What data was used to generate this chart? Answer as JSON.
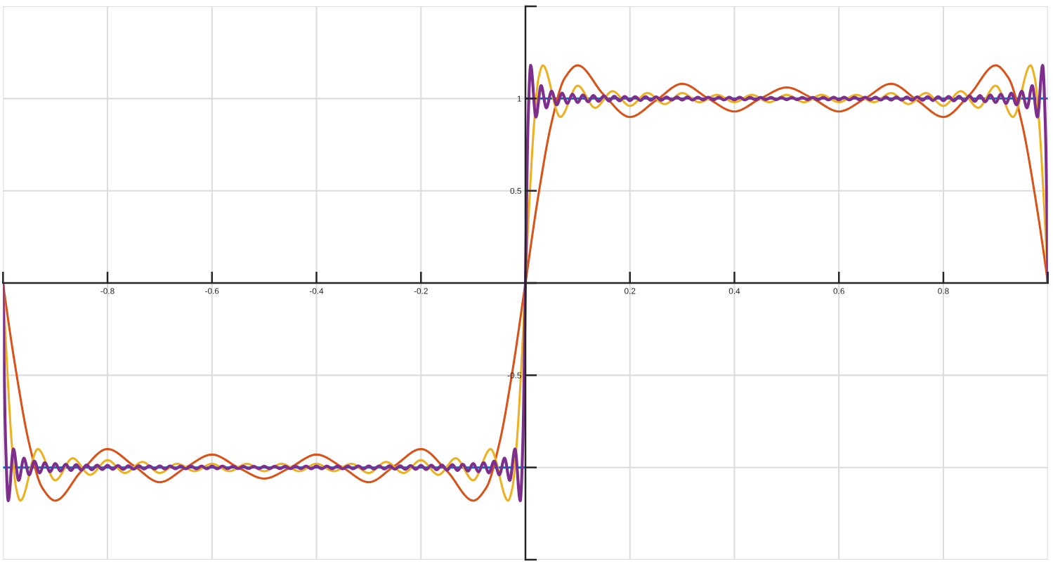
{
  "chart_data": {
    "type": "line",
    "xlim": [
      -1,
      1
    ],
    "ylim": [
      -1.5,
      1.5
    ],
    "xticks": [
      {
        "value": -1,
        "label": null
      },
      -0.8,
      -0.6,
      -0.4,
      -0.2,
      {
        "value": 0,
        "label": null
      },
      0.2,
      0.4,
      0.6,
      0.8,
      {
        "value": 1,
        "label": null
      }
    ],
    "yticks": [
      {
        "value": -1.5,
        "label": null
      },
      {
        "value": -1,
        "label": null
      },
      -0.5,
      {
        "value": 0,
        "label": null
      },
      0.5,
      1,
      {
        "value": 1.5,
        "label": null
      }
    ],
    "grid": true,
    "line_style": "solid",
    "series": [
      {
        "color": "#0072bd",
        "x": [
          -1,
          0
        ],
        "values": [
          -1,
          -1
        ]
      },
      {
        "color": "#0072bd",
        "x": [
          0,
          1
        ],
        "values": [
          1,
          1
        ]
      },
      {
        "color": "#d95319",
        "x": [
          -1,
          -0.975,
          -0.95,
          -0.925,
          -0.9,
          -0.85,
          -0.8,
          -0.75,
          -0.7,
          -0.65,
          -0.6,
          -0.55,
          -0.5,
          -0.45,
          -0.4,
          -0.35,
          -0.3,
          -0.25,
          -0.2,
          -0.15,
          -0.1,
          -0.075,
          -0.05,
          -0.025,
          0,
          0.025,
          0.05,
          0.075,
          0.1,
          0.15,
          0.2,
          0.25,
          0.3,
          0.35,
          0.4,
          0.45,
          0.5,
          0.55,
          0.6,
          0.65,
          0.7,
          0.75,
          0.8,
          0.85,
          0.9,
          0.925,
          0.95,
          0.975,
          1
        ],
        "values": [
          0,
          -0.48,
          -0.87,
          -1.11,
          -1.18,
          -1.02,
          -0.9,
          -0.99,
          -1.08,
          -1.0,
          -0.93,
          -1.0,
          -1.06,
          -1.0,
          -0.93,
          -1.0,
          -1.08,
          -0.99,
          -0.9,
          -1.02,
          -1.18,
          -1.11,
          -0.87,
          -0.48,
          0,
          0.48,
          0.87,
          1.11,
          1.18,
          1.02,
          0.9,
          0.99,
          1.08,
          1.0,
          0.93,
          1.0,
          1.06,
          1.0,
          0.93,
          1.0,
          1.08,
          0.99,
          0.9,
          1.02,
          1.18,
          1.11,
          0.87,
          0.48,
          0
        ]
      },
      {
        "color": "#edb120",
        "x": [
          -1,
          -0.9917,
          -0.9833,
          -0.975,
          -0.9667,
          -0.9333,
          -0.9,
          -0.8667,
          -0.8333,
          -0.8,
          -0.7667,
          -0.7333,
          -0.7,
          -0.6667,
          -0.6333,
          -0.6,
          -0.5667,
          -0.5333,
          -0.5,
          -0.4667,
          -0.4333,
          -0.4,
          -0.3667,
          -0.3333,
          -0.3,
          -0.2667,
          -0.2333,
          -0.2,
          -0.1667,
          -0.1333,
          -0.1,
          -0.0667,
          -0.0333,
          -0.025,
          -0.0167,
          -0.0083,
          0,
          0.0083,
          0.0167,
          0.025,
          0.0333,
          0.0667,
          0.1,
          0.1333,
          0.1667,
          0.2,
          0.2333,
          0.2667,
          0.3,
          0.3333,
          0.3667,
          0.4,
          0.4333,
          0.4667,
          0.5,
          0.5333,
          0.5667,
          0.6,
          0.6333,
          0.6667,
          0.7,
          0.7333,
          0.7667,
          0.8,
          0.8333,
          0.8667,
          0.9,
          0.9333,
          0.9667,
          0.975,
          0.9833,
          0.9917,
          1
        ],
        "values": [
          0,
          -0.48,
          -0.87,
          -1.11,
          -1.18,
          -0.9,
          -1.07,
          -0.95,
          -1.04,
          -0.96,
          -1.03,
          -0.97,
          -1.03,
          -0.98,
          -1.02,
          -0.98,
          -1.02,
          -0.98,
          -1.02,
          -0.98,
          -1.02,
          -0.98,
          -1.02,
          -0.98,
          -1.03,
          -0.97,
          -1.03,
          -0.96,
          -1.04,
          -0.95,
          -1.07,
          -0.9,
          -1.18,
          -1.11,
          -0.87,
          -0.48,
          0,
          0.48,
          0.87,
          1.11,
          1.18,
          0.9,
          1.07,
          0.95,
          1.04,
          0.96,
          1.03,
          0.97,
          1.03,
          0.98,
          1.02,
          0.98,
          1.02,
          0.98,
          1.02,
          0.98,
          1.02,
          0.98,
          1.02,
          0.98,
          1.03,
          0.97,
          1.03,
          0.96,
          1.04,
          0.95,
          1.07,
          0.9,
          1.18,
          1.11,
          0.87,
          0.48,
          0
        ]
      },
      {
        "color": "#7e2f8e",
        "x": [
          -1,
          -0.995,
          -0.99,
          -0.98,
          -0.97,
          -0.96,
          -0.95,
          -0.94,
          -0.93,
          -0.92,
          -0.91,
          -0.9,
          -0.89,
          -0.88,
          -0.87,
          -0.86,
          -0.85,
          -0.84,
          -0.83,
          -0.82,
          -0.81,
          -0.8,
          -0.79,
          -0.78,
          -0.77,
          -0.76,
          -0.75,
          -0.74,
          -0.73,
          -0.72,
          -0.71,
          -0.7,
          -0.69,
          -0.68,
          -0.67,
          -0.66,
          -0.65,
          -0.64,
          -0.63,
          -0.62,
          -0.61,
          -0.6,
          -0.59,
          -0.58,
          -0.57,
          -0.56,
          -0.55,
          -0.54,
          -0.53,
          -0.52,
          -0.51,
          -0.5,
          -0.49,
          -0.48,
          -0.47,
          -0.46,
          -0.45,
          -0.44,
          -0.43,
          -0.42,
          -0.41,
          -0.4,
          -0.39,
          -0.38,
          -0.37,
          -0.36,
          -0.35,
          -0.34,
          -0.33,
          -0.32,
          -0.31,
          -0.3,
          -0.29,
          -0.28,
          -0.27,
          -0.26,
          -0.25,
          -0.24,
          -0.23,
          -0.22,
          -0.21,
          -0.2,
          -0.19,
          -0.18,
          -0.17,
          -0.16,
          -0.15,
          -0.14,
          -0.13,
          -0.12,
          -0.11,
          -0.1,
          -0.09,
          -0.08,
          -0.07,
          -0.06,
          -0.05,
          -0.04,
          -0.03,
          -0.02,
          -0.01,
          -0.005,
          0,
          0.005,
          0.01,
          0.02,
          0.03,
          0.04,
          0.05,
          0.06,
          0.07,
          0.08,
          0.09,
          0.1,
          0.11,
          0.12,
          0.13,
          0.14,
          0.15,
          0.16,
          0.17,
          0.18,
          0.19,
          0.2,
          0.21,
          0.22,
          0.23,
          0.24,
          0.25,
          0.26,
          0.27,
          0.28,
          0.29,
          0.3,
          0.31,
          0.32,
          0.33,
          0.34,
          0.35,
          0.36,
          0.37,
          0.38,
          0.39,
          0.4,
          0.41,
          0.42,
          0.43,
          0.44,
          0.45,
          0.46,
          0.47,
          0.48,
          0.49,
          0.5,
          0.51,
          0.52,
          0.53,
          0.54,
          0.55,
          0.56,
          0.57,
          0.58,
          0.59,
          0.6,
          0.61,
          0.62,
          0.63,
          0.64,
          0.65,
          0.66,
          0.67,
          0.68,
          0.69,
          0.7,
          0.71,
          0.72,
          0.73,
          0.74,
          0.75,
          0.76,
          0.77,
          0.78,
          0.79,
          0.8,
          0.81,
          0.82,
          0.83,
          0.84,
          0.85,
          0.86,
          0.87,
          0.88,
          0.89,
          0.9,
          0.91,
          0.92,
          0.93,
          0.94,
          0.95,
          0.96,
          0.97,
          0.98,
          0.99,
          0.995,
          1
        ],
        "values": [
          0,
          -0.87,
          -1.18,
          -0.9,
          -1.07,
          -0.95,
          -1.04,
          -0.966,
          -1.029,
          -0.974,
          -1.023,
          -0.979,
          -1.019,
          -0.983,
          -1.016,
          -0.985,
          -1.014,
          -0.987,
          -1.012,
          -0.988,
          -1.011,
          -0.989,
          -1.01,
          -0.99,
          -1.01,
          -0.991,
          -1.009,
          -0.991,
          -1.008,
          -0.992,
          -1.008,
          -0.992,
          -1.008,
          -0.992,
          -1.007,
          -0.993,
          -1.007,
          -0.993,
          -1.007,
          -0.993,
          -1.007,
          -0.993,
          -1.007,
          -0.993,
          -1.006,
          -0.994,
          -1.006,
          -0.994,
          -1.006,
          -0.994,
          -1.006,
          -0.994,
          -1.006,
          -0.994,
          -1.006,
          -0.994,
          -1.006,
          -0.994,
          -1.006,
          -0.993,
          -1.007,
          -0.993,
          -1.007,
          -0.993,
          -1.007,
          -0.993,
          -1.007,
          -0.993,
          -1.007,
          -0.992,
          -1.008,
          -0.992,
          -1.008,
          -0.992,
          -1.008,
          -0.991,
          -1.009,
          -0.991,
          -1.01,
          -0.99,
          -1.01,
          -0.989,
          -1.011,
          -0.988,
          -1.012,
          -0.987,
          -1.014,
          -0.985,
          -1.016,
          -0.983,
          -1.019,
          -0.979,
          -1.023,
          -0.974,
          -1.029,
          -0.966,
          -1.04,
          -0.95,
          -1.07,
          -0.9,
          -1.18,
          -0.87,
          0,
          0.87,
          1.18,
          0.9,
          1.07,
          0.95,
          1.04,
          0.966,
          1.029,
          0.974,
          1.023,
          0.979,
          1.019,
          0.983,
          1.016,
          0.985,
          1.014,
          0.987,
          1.012,
          0.988,
          1.011,
          0.989,
          1.01,
          0.99,
          1.01,
          0.991,
          1.009,
          0.991,
          1.008,
          0.992,
          1.008,
          0.992,
          1.008,
          0.992,
          1.007,
          0.993,
          1.007,
          0.993,
          1.007,
          0.993,
          1.007,
          0.993,
          1.007,
          0.993,
          1.006,
          0.994,
          1.006,
          0.994,
          1.006,
          0.994,
          1.006,
          0.994,
          1.006,
          0.994,
          1.006,
          0.994,
          1.006,
          0.994,
          1.006,
          0.993,
          1.007,
          0.993,
          1.007,
          0.993,
          1.007,
          0.993,
          1.007,
          0.993,
          1.007,
          0.992,
          1.008,
          0.992,
          1.008,
          0.992,
          1.008,
          0.991,
          1.009,
          0.991,
          1.01,
          0.99,
          1.01,
          0.989,
          1.011,
          0.988,
          1.012,
          0.987,
          1.014,
          0.985,
          1.016,
          0.983,
          1.019,
          0.979,
          1.023,
          0.974,
          1.029,
          0.966,
          1.04,
          0.95,
          1.07,
          0.9,
          1.18,
          0.87,
          0
        ]
      }
    ]
  }
}
